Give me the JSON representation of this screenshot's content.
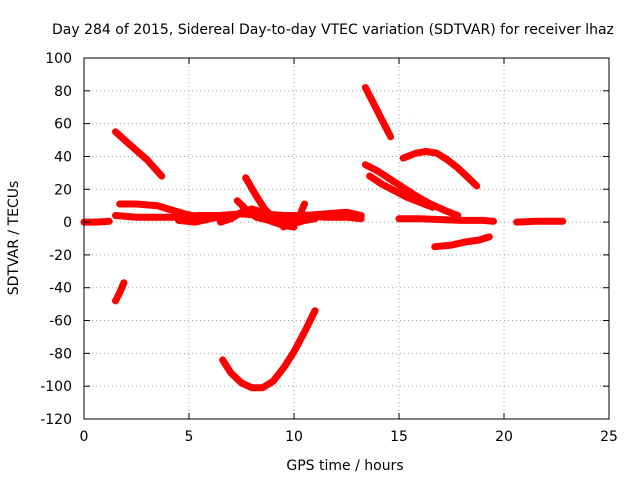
{
  "chart_data": {
    "type": "line",
    "title": "Day 284 of 2015, Sidereal Day-to-day VTEC variation (SDTVAR) for receiver lhaz",
    "xlabel": "GPS time / hours",
    "ylabel": "SDTVAR / TECUs",
    "xlim": [
      0,
      25
    ],
    "ylim": [
      -120,
      100
    ],
    "xticks": [
      0,
      5,
      10,
      15,
      20,
      25
    ],
    "yticks": [
      -120,
      -100,
      -80,
      -60,
      -40,
      -20,
      0,
      20,
      40,
      60,
      80,
      100
    ],
    "xtick_labels": [
      "0",
      "5",
      "10",
      "15",
      "20",
      "25"
    ],
    "ytick_labels": [
      "-120",
      "-100",
      "-80",
      "-60",
      "-40",
      "-20",
      "0",
      "20",
      "40",
      "60",
      "80",
      "100"
    ],
    "grid": true,
    "legend": "none",
    "color": "#ff0000",
    "series": [
      {
        "x": [
          0.0,
          0.6,
          1.2
        ],
        "y": [
          0,
          0,
          0.5
        ]
      },
      {
        "x": [
          1.5,
          1.7,
          1.9
        ],
        "y": [
          -48,
          -43,
          -37
        ]
      },
      {
        "x": [
          1.5,
          2.2,
          3.0,
          3.7
        ],
        "y": [
          55,
          47,
          38,
          28
        ]
      },
      {
        "x": [
          1.7,
          2.5,
          3.5,
          4.0,
          4.8,
          5.5,
          6.5,
          7.5,
          8.5,
          9.5,
          10.5,
          11.5,
          12.5,
          13.2
        ],
        "y": [
          11,
          11,
          10,
          8,
          5,
          3,
          4,
          5,
          5,
          4,
          4,
          3,
          3,
          2
        ]
      },
      {
        "x": [
          1.5,
          2.5,
          3.5,
          4.5,
          5.5,
          6.5,
          7.5,
          8.5,
          9.5,
          10.5,
          11.5,
          12.5,
          13.2
        ],
        "y": [
          4,
          3,
          3,
          3,
          4,
          4,
          5,
          4,
          4,
          4,
          5,
          6,
          4
        ]
      },
      {
        "x": [
          4.5,
          5.3,
          6.0,
          6.8,
          7.5
        ],
        "y": [
          1,
          0,
          2,
          4,
          5
        ]
      },
      {
        "x": [
          6.5,
          7.0,
          7.5,
          8.0,
          8.5,
          9.0,
          9.5,
          10.0,
          10.5,
          11.0
        ],
        "y": [
          0,
          2,
          6,
          8,
          6,
          3,
          1,
          -1,
          1,
          2
        ]
      },
      {
        "x": [
          7.3,
          7.7,
          8.2,
          8.8,
          9.5,
          10.0
        ],
        "y": [
          13,
          8,
          3,
          1,
          -2,
          -3
        ]
      },
      {
        "x": [
          7.7,
          8.2,
          8.6,
          9.0,
          9.5
        ],
        "y": [
          27,
          16,
          8,
          3,
          -1
        ]
      },
      {
        "x": [
          9.5,
          9.9,
          10.3,
          10.5
        ],
        "y": [
          -3,
          0,
          5,
          11
        ]
      },
      {
        "x": [
          6.6,
          7.0,
          7.5,
          8.0,
          8.5,
          9.0,
          9.5,
          10.0,
          10.5,
          11.0
        ],
        "y": [
          -84,
          -92,
          -98,
          -101,
          -101,
          -97,
          -89,
          -79,
          -67,
          -54
        ]
      },
      {
        "x": [
          13.4,
          13.8,
          14.2,
          14.6
        ],
        "y": [
          82,
          72,
          62,
          52
        ]
      },
      {
        "x": [
          13.4,
          14.0,
          14.6,
          15.2,
          15.8,
          16.5,
          17.2,
          17.8
        ],
        "y": [
          35,
          31,
          26,
          21,
          16,
          11,
          7,
          4
        ]
      },
      {
        "x": [
          13.6,
          14.2,
          14.8,
          15.4,
          16.0,
          16.6
        ],
        "y": [
          28,
          23,
          19,
          15,
          12,
          9
        ]
      },
      {
        "x": [
          15.2,
          15.8,
          16.3,
          16.8,
          17.3,
          17.8,
          18.3,
          18.7
        ],
        "y": [
          39,
          42,
          43,
          42,
          38,
          33,
          27,
          22
        ]
      },
      {
        "x": [
          15.0,
          16.0,
          17.0,
          18.0,
          19.0,
          19.5
        ],
        "y": [
          2,
          2,
          1.5,
          1,
          1,
          0.5
        ]
      },
      {
        "x": [
          16.7,
          17.5,
          18.2,
          18.8,
          19.3
        ],
        "y": [
          -15,
          -14,
          -12,
          -11,
          -9
        ]
      },
      {
        "x": [
          20.6,
          21.5,
          22.5,
          22.8
        ],
        "y": [
          0,
          0.5,
          0.5,
          0.5
        ]
      }
    ]
  }
}
